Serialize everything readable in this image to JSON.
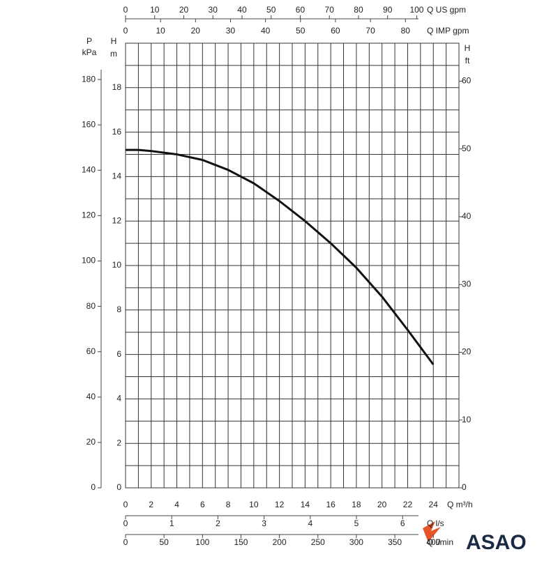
{
  "chart_data": {
    "type": "line",
    "x_label": "Q m³/h",
    "y_label": [
      "H",
      "m"
    ],
    "xlim": [
      0,
      26
    ],
    "ylim": [
      0,
      20
    ],
    "xticks": [
      0,
      2,
      4,
      6,
      8,
      10,
      12,
      14,
      16,
      18,
      20,
      22,
      24
    ],
    "yticks": [
      0,
      2,
      4,
      6,
      8,
      10,
      12,
      14,
      16,
      18
    ],
    "grid": true,
    "grid_x": [
      1,
      3,
      5,
      7,
      9,
      11,
      13,
      15,
      17,
      19,
      21,
      23,
      25
    ],
    "grid_y": [
      1,
      3,
      5,
      7,
      9,
      11,
      13,
      15,
      17,
      19
    ],
    "color": "#111111",
    "x": [
      0,
      1,
      2,
      4,
      6,
      8,
      10,
      12,
      14,
      16,
      18,
      20,
      22,
      24
    ],
    "values": [
      15.2,
      15.2,
      15.15,
      15.0,
      14.75,
      14.3,
      13.7,
      12.9,
      12.0,
      11.0,
      9.9,
      8.6,
      7.1,
      5.55
    ],
    "secondary_axes": [
      {
        "position": "left",
        "label": [
          "P",
          "kPa"
        ],
        "lim": [
          0,
          196
        ],
        "ticks": [
          0,
          20,
          40,
          60,
          80,
          100,
          120,
          140,
          160,
          180
        ]
      },
      {
        "position": "right",
        "label": [
          "H",
          "ft"
        ],
        "lim": [
          0,
          65.6
        ],
        "ticks": [
          0,
          10,
          20,
          30,
          40,
          50,
          60
        ]
      },
      {
        "position": "top",
        "label": [
          "Q US gpm"
        ],
        "lim": [
          0,
          114.5
        ],
        "ticks": [
          0,
          10,
          20,
          30,
          40,
          50,
          60,
          70,
          80,
          90,
          100
        ]
      },
      {
        "position": "top",
        "label": [
          "Q IMP gpm"
        ],
        "lim": [
          0,
          95.3
        ],
        "ticks": [
          0,
          10,
          20,
          30,
          40,
          50,
          60,
          70,
          80
        ]
      },
      {
        "position": "bottom",
        "label": [
          "Q l/s"
        ],
        "lim": [
          0,
          7.22
        ],
        "ticks": [
          0,
          1,
          2,
          3,
          4,
          5,
          6
        ]
      },
      {
        "position": "bottom",
        "label": [
          "Q l/min"
        ],
        "lim": [
          0,
          433.3
        ],
        "ticks": [
          0,
          50,
          100,
          150,
          200,
          250,
          300,
          350,
          400
        ]
      }
    ]
  },
  "logo": "ASAO"
}
